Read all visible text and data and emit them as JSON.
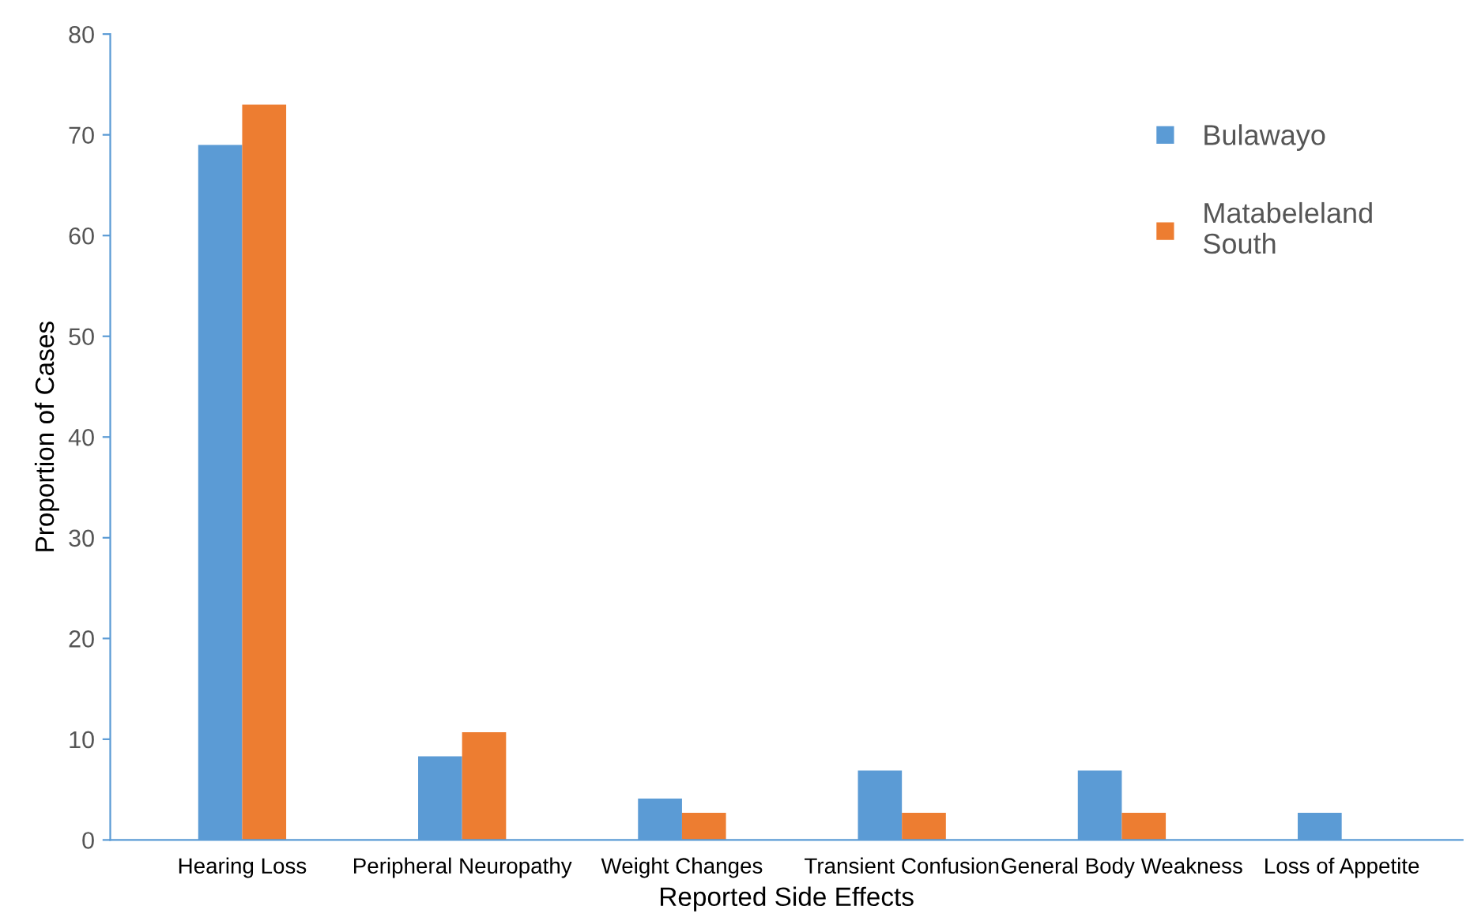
{
  "chart_data": {
    "type": "bar",
    "xlabel": "Reported Side Effects",
    "ylabel": "Proportion of Cases",
    "categories": [
      "Hearing Loss",
      "Peripheral Neuropathy",
      "Weight Changes",
      "Transient Confusion",
      "General Body Weakness",
      "Loss of Appetite"
    ],
    "series": [
      {
        "name": "Bulawayo",
        "color": "#5b9bd5",
        "values": [
          69,
          8.3,
          4.1,
          6.9,
          6.9,
          2.7
        ]
      },
      {
        "name": "Matabeleland\nSouth",
        "color": "#ed7d31",
        "values": [
          73,
          10.7,
          2.7,
          2.7,
          2.7,
          0
        ]
      }
    ],
    "ylim": [
      0,
      80
    ],
    "yticks": [
      0,
      10,
      20,
      30,
      40,
      50,
      60,
      70,
      80
    ],
    "grid": false,
    "legend": "right",
    "marker": "square"
  }
}
